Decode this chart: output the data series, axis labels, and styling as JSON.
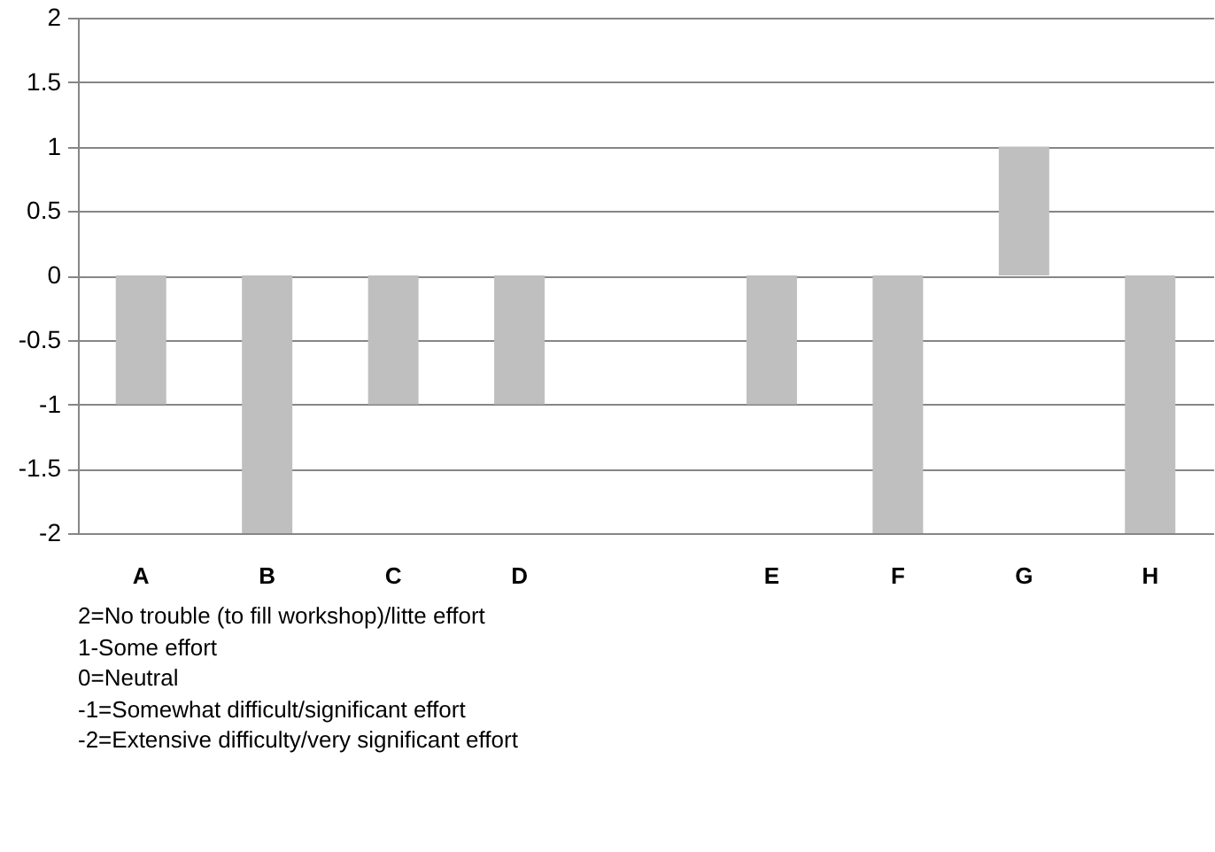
{
  "chart_data": {
    "type": "bar",
    "categories": [
      "A",
      "B",
      "C",
      "D",
      null,
      "E",
      "F",
      "G",
      "H"
    ],
    "values": [
      -1,
      -2,
      -1,
      -1,
      null,
      -1,
      -2,
      1,
      -2
    ],
    "color": "#bfbfbf",
    "ylim": [
      -2,
      2
    ],
    "yticks": [
      -2,
      -1.5,
      -1,
      -0.5,
      0,
      0.5,
      1,
      1.5,
      2
    ],
    "grid": "y",
    "annotations": [
      "2=No trouble (to fill workshop)/litte effort",
      "1-Some effort",
      "0=Neutral",
      "-1=Somewhat difficult/significant effort",
      "-2=Extensive difficulty/very significant effort"
    ]
  }
}
